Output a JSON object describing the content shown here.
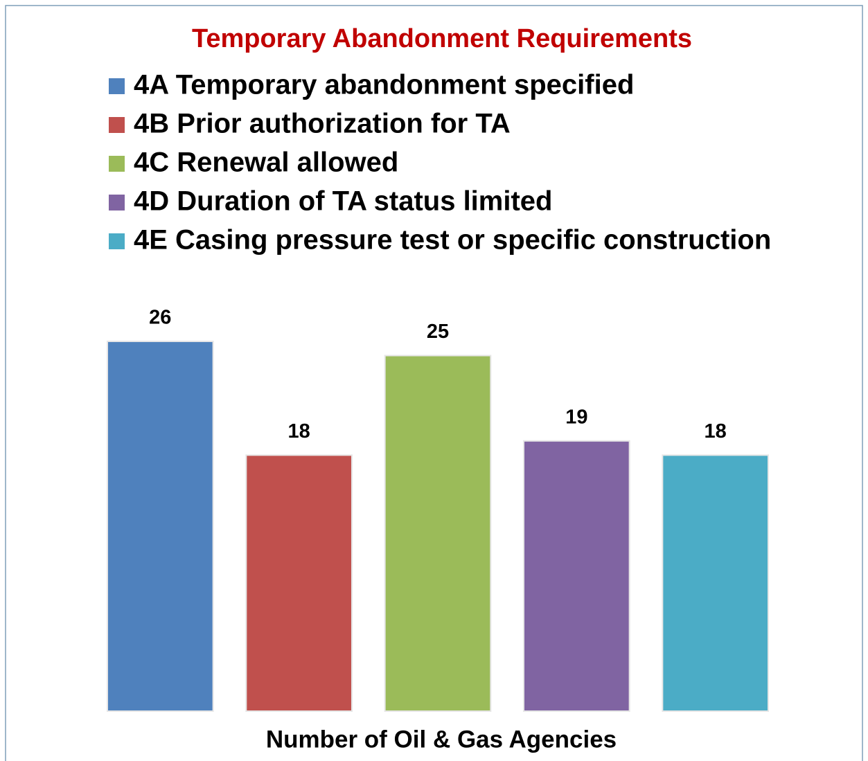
{
  "chart_data": {
    "type": "bar",
    "title": "Temporary Abandonment Requirements",
    "x_label": "Number of Oil & Gas Agencies",
    "categories": [
      null
    ],
    "series": [
      {
        "name": "4A Temporary abandonment specified",
        "color": "#4f81bd",
        "values": [
          26
        ]
      },
      {
        "name": "4B Prior authorization for TA",
        "color": "#c0504d",
        "values": [
          18
        ]
      },
      {
        "name": "4C Renewal allowed",
        "color": "#9bbb59",
        "values": [
          25
        ]
      },
      {
        "name": "4D Duration of TA status limited",
        "color": "#8064a2",
        "values": [
          19
        ]
      },
      {
        "name": "4E Casing pressure test or specific construction",
        "color": "#4bacc6",
        "values": [
          18
        ]
      }
    ],
    "ylim": [
      0,
      26
    ],
    "legend": "top"
  }
}
